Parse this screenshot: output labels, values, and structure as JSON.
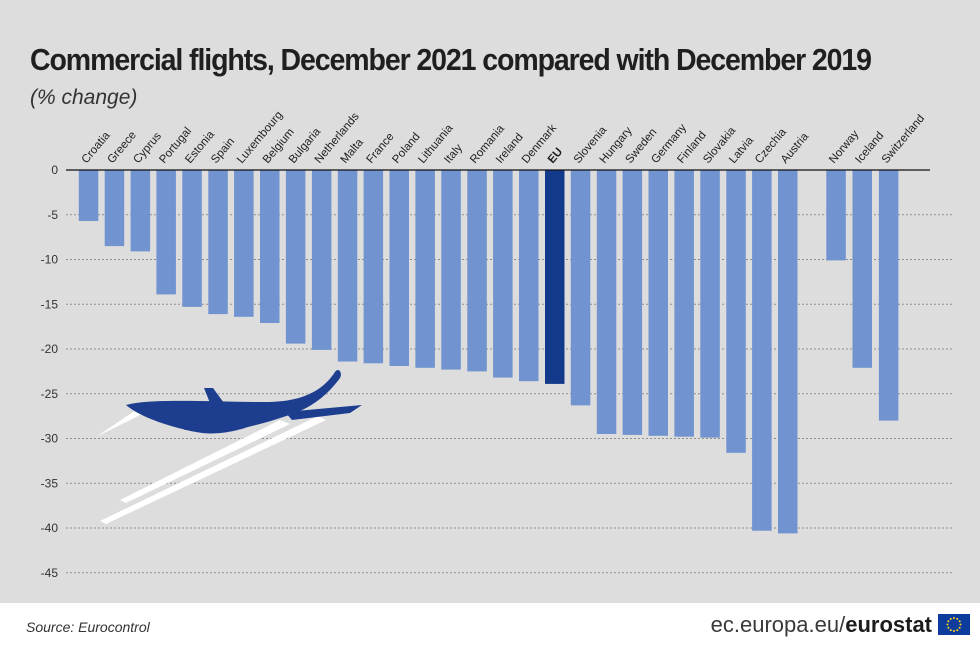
{
  "title": "Commercial flights, December 2021 compared with December 2019",
  "subtitle": "(% change)",
  "source": "Source: Eurocontrol",
  "brand": {
    "domain": "ec.europa.eu/",
    "name": "eurostat"
  },
  "colors": {
    "bar": "#7193cf",
    "highlight": "#133a8a",
    "plane": "#1d3e8f",
    "background": "#dddddd"
  },
  "icons": [
    "airplane-icon",
    "eu-flag-icon"
  ],
  "chart_data": {
    "type": "bar",
    "title": "Commercial flights, December 2021 compared with December 2019",
    "subtitle": "(% change)",
    "xlabel": "",
    "ylabel": "",
    "ylim": [
      -45,
      0
    ],
    "yticks": [
      0,
      -5,
      -10,
      -15,
      -20,
      -25,
      -30,
      -35,
      -40,
      -45
    ],
    "grid": true,
    "highlight": "EU",
    "categories": [
      "Croatia",
      "Greece",
      "Cyprus",
      "Portugal",
      "Estonia",
      "Spain",
      "Luxembourg",
      "Belgium",
      "Bulgaria",
      "Netherlands",
      "Malta",
      "France",
      "Poland",
      "Lithuania",
      "Italy",
      "Romania",
      "Ireland",
      "Denmark",
      "EU",
      "Slovenia",
      "Hungary",
      "Sweden",
      "Germany",
      "Finland",
      "Slovakia",
      "Latvia",
      "Czechia",
      "Austria",
      "Norway",
      "Iceland",
      "Switzerland"
    ],
    "values": [
      -5.7,
      -8.5,
      -9.1,
      -13.9,
      -15.3,
      -16.1,
      -16.4,
      -17.1,
      -19.4,
      -20.1,
      -21.4,
      -21.6,
      -21.9,
      -22.1,
      -22.3,
      -22.5,
      -23.2,
      -23.6,
      -23.9,
      -26.3,
      -29.5,
      -29.6,
      -29.7,
      -29.8,
      -29.9,
      -31.6,
      -40.3,
      -40.6,
      -10.1,
      -22.1,
      -28.0
    ]
  }
}
